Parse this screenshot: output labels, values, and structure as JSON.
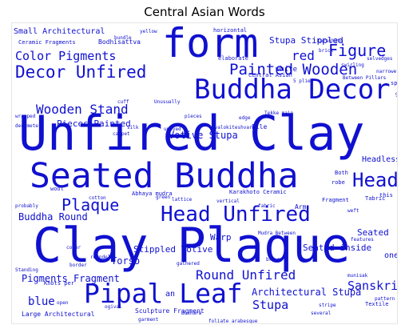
{
  "title": "Central Asian Words",
  "colors": {
    "word": "#1010d0",
    "background": "#ffffff",
    "frame": "#e6e6e6"
  },
  "words": [
    "Unfired Clay",
    "Seated Buddha",
    "Clay Plaque",
    "Buddha Decor",
    "form",
    "Pipal Leaf",
    "Head Unfired",
    "Decor Unfired",
    "Painted Wooden",
    "Color Pigments",
    "Wooden Stand",
    "Round Unfired",
    "Figure",
    "Plaque",
    "Head",
    "Stupa",
    "Sanskrit",
    "Architectural Stupa",
    "Buddha Round",
    "Pigments Fragment",
    "Stupa Stippled",
    "Pieces Painted",
    "Votive Stupa",
    "Stippled Votive",
    "Small Architectural",
    "Seated inside",
    "Torso",
    "blue",
    "Seated",
    "red",
    "Headless",
    "Central Asian",
    "Ceramic Fragments",
    "Bodhisattva",
    "Sculpture Fragment",
    "Large Architectural",
    "Warp",
    "Abhaya mudra",
    "Karakhoto Ceramic",
    "Textile",
    "Fragment",
    "Between Pillars",
    "white",
    "Knots per",
    "Both",
    "robe",
    "one",
    "an",
    "horizontal",
    "elaborate",
    "wool",
    "silk",
    "carpet",
    "lattice",
    "munisak",
    "garment",
    "Bukhara",
    "Tekke main",
    "this",
    "Arm",
    "undyed",
    "weft",
    "decimeter",
    "wrapped",
    "pattern",
    "fabric",
    "features",
    "Mudra Between",
    "Avalokiteshvara",
    "green",
    "brown",
    "border",
    "color",
    "stripe",
    "several",
    "gathered",
    "vertical",
    "Standing",
    "roundel",
    "cuff",
    "Karakhoto",
    "spun",
    "goat",
    "edge",
    "Pile",
    "Unusually",
    "probably",
    "brick",
    "selvedges",
    "bundle",
    "yellow",
    "open",
    "ogival",
    "foliate arabesque",
    "swirling",
    "narrower",
    "cotton",
    "Tabric",
    "5 plied",
    "pieces"
  ]
}
